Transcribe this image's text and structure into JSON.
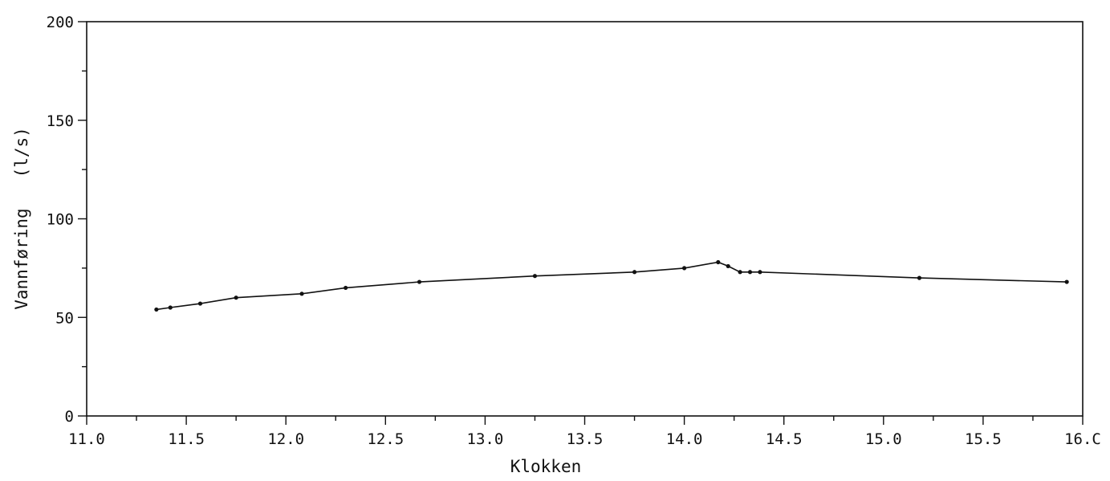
{
  "chart_data": {
    "type": "line",
    "title": "",
    "xlabel": "Klokken",
    "ylabel": "Vannføring   (l/s)",
    "xlim": [
      11.0,
      16.0
    ],
    "ylim": [
      0,
      200
    ],
    "x_ticks_major": [
      11.0,
      11.5,
      12.0,
      12.5,
      13.0,
      13.5,
      14.0,
      14.5,
      15.0,
      15.5,
      16.0
    ],
    "x_tick_labels": [
      "11.0",
      "11.5",
      "12.0",
      "12.5",
      "13.0",
      "13.5",
      "14.0",
      "14.5",
      "15.0",
      "15.5",
      "16.C"
    ],
    "x_ticks_minor_step": 0.25,
    "y_ticks_major": [
      0,
      50,
      100,
      150,
      200
    ],
    "y_tick_labels": [
      "0",
      "50",
      "100",
      "150",
      "200"
    ],
    "y_ticks_minor_step": 25,
    "grid": false,
    "series": [
      {
        "x": [
          11.35,
          11.42,
          11.57,
          11.75,
          12.08,
          12.3,
          12.67,
          13.25,
          13.75,
          14.0,
          14.17,
          14.22,
          14.28,
          14.33,
          14.38,
          15.18,
          15.92
        ],
        "y": [
          54,
          55,
          57,
          60,
          62,
          65,
          68,
          71,
          73,
          75,
          78,
          76,
          73,
          73,
          73,
          70,
          68
        ]
      }
    ]
  }
}
